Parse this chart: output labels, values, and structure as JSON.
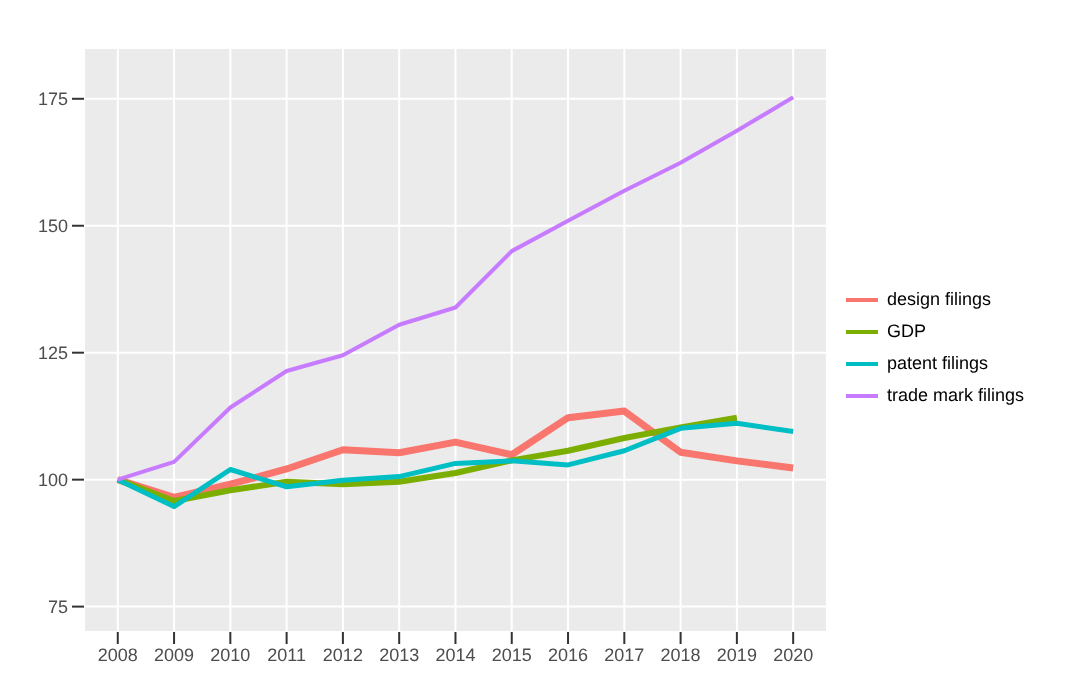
{
  "chart_data": {
    "type": "line",
    "x": [
      2008,
      2009,
      2010,
      2011,
      2012,
      2013,
      2014,
      2015,
      2016,
      2017,
      2018,
      2019,
      2020
    ],
    "series": [
      {
        "name": "design filings",
        "color": "#f8766d",
        "values": [
          100,
          96.5,
          99.1,
          102.1,
          105.9,
          105.3,
          107.4,
          104.9,
          112.2,
          113.5,
          105.4,
          103.7,
          102.3
        ]
      },
      {
        "name": "GDP",
        "color": "#7cae00",
        "values": [
          100,
          95.8,
          97.9,
          99.6,
          99.1,
          99.6,
          101.3,
          103.8,
          105.7,
          108.2,
          110.3,
          112.2,
          null
        ]
      },
      {
        "name": "patent filings",
        "color": "#00bfc4",
        "values": [
          100,
          94.7,
          102,
          98.6,
          99.9,
          100.6,
          103.2,
          103.7,
          102.9,
          105.7,
          110.1,
          111.1,
          109.5
        ]
      },
      {
        "name": "trade mark filings",
        "color": "#c77cff",
        "values": [
          100,
          103.5,
          114.2,
          121.4,
          124.5,
          130.5,
          133.9,
          145,
          151,
          156.9,
          162.4,
          168.7,
          175.3
        ]
      }
    ],
    "xlim": [
      2007.4,
      2020.6
    ],
    "xticks": [
      2008,
      2009,
      2010,
      2011,
      2012,
      2013,
      2014,
      2015,
      2016,
      2017,
      2018,
      2019,
      2020
    ],
    "ylim": [
      70,
      185
    ],
    "yticks": [
      75,
      100,
      125,
      150,
      175
    ],
    "grid": true,
    "legend": "right",
    "marker": "none",
    "line_style": "solid"
  }
}
